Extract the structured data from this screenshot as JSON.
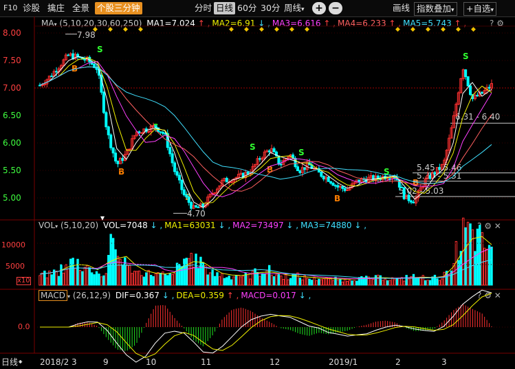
{
  "toolbar": {
    "f10": "F10",
    "diagnose": "诊股",
    "capture": "擒庄",
    "panorama": "全景",
    "plugin": "个股三分钟",
    "periods": [
      "分时",
      "日线",
      "60分",
      "30分",
      "周线"
    ],
    "active_period": "日线",
    "zoom_in": "+",
    "zoom_out": "−",
    "draw": "画线",
    "index_overlay": "指数叠加",
    "add_watchlist": "+自选",
    "caret": "▾"
  },
  "main_legend": {
    "name": "MA",
    "params": "(5,10,20,30,60,250)",
    "items": [
      {
        "label": "MA1=7.024",
        "arrow": "↑",
        "color": "#ffffff"
      },
      {
        "label": "MA2=6.91",
        "arrow": "↓",
        "color": "#f0f000"
      },
      {
        "label": "MA3=6.616",
        "arrow": "↑",
        "color": "#ff40ff"
      },
      {
        "label": "MA4=6.233",
        "arrow": "↑",
        "color": "#ff6060"
      },
      {
        "label": "MA5=5.743",
        "arrow": "↑",
        "color": "#40e0ff"
      }
    ]
  },
  "vol_legend": {
    "name": "VOL",
    "params": "(5,10,20)",
    "items": [
      {
        "label": "VOL=7048",
        "arrow": "↓",
        "color": "#ffffff"
      },
      {
        "label": "MA1=63031",
        "arrow": "↓",
        "color": "#f0f000"
      },
      {
        "label": "MA2=73497",
        "arrow": "↓",
        "color": "#ff40ff"
      },
      {
        "label": "MA3=74880",
        "arrow": "↓",
        "color": "#40e0ff"
      }
    ]
  },
  "macd_legend": {
    "name": "MACD",
    "params": "(26,12,9)",
    "items": [
      {
        "label": "DIF=0.367",
        "arrow": "↓",
        "color": "#ffffff"
      },
      {
        "label": "DEA=0.359",
        "arrow": "↑",
        "color": "#f0f000"
      },
      {
        "label": "MACD=0.017",
        "arrow": "↓",
        "color": "#ff40ff"
      }
    ]
  },
  "price_axis": [
    "8.00",
    "7.50",
    "7.00",
    "6.50",
    "6.00",
    "5.50",
    "5.00"
  ],
  "volume_axis": [
    "10000",
    "5000",
    "x10"
  ],
  "macd_axis": [
    "0.0"
  ],
  "date_axis": {
    "period_label": "日线",
    "labels": [
      "2018/2",
      "3",
      "9",
      "10",
      "11",
      "12",
      "2019/1",
      "2",
      "3"
    ]
  },
  "annotations": {
    "high": "7.98",
    "low": "4.70",
    "ranges": [
      "6.31 - 6.40",
      "5.45 - 5.46",
      "5.30 - 5.31",
      "5.02 - 5.03"
    ],
    "buy": "B",
    "sell": "S"
  },
  "colors": {
    "up": "#ff3030",
    "down": "#00ffff",
    "grid": "#7a0000",
    "axis_text": "#ff4040",
    "buy_mark": "#ff8000",
    "sell_mark": "#30ff30",
    "highlight": "#e89020"
  },
  "icons": [
    "gear-icon",
    "help-icon",
    "close-icon",
    "restore-icon",
    "down-arrow-icon",
    "up-arrow-icon"
  ],
  "chart_data": [
    {
      "type": "candlestick",
      "title": "MA",
      "ylim": [
        4.6,
        8.05
      ],
      "series": [
        {
          "name": "MA1",
          "last": 7.024
        },
        {
          "name": "MA2",
          "last": 6.91
        },
        {
          "name": "MA3",
          "last": 6.616
        },
        {
          "name": "MA4",
          "last": 6.233
        },
        {
          "name": "MA5",
          "last": 5.743
        }
      ],
      "close_path": [
        7.05,
        7.2,
        7.4,
        7.6,
        7.55,
        7.5,
        7.35,
        6.2,
        5.6,
        5.8,
        6.2,
        6.25,
        6.3,
        6.15,
        5.5,
        5.05,
        4.8,
        4.85,
        5.1,
        5.3,
        5.35,
        5.4,
        5.5,
        5.75,
        5.9,
        5.6,
        5.8,
        5.5,
        5.6,
        5.45,
        5.35,
        5.2,
        5.15,
        5.3,
        5.35,
        5.35,
        5.4,
        5.4,
        5.0,
        4.95,
        5.3,
        5.45,
        5.6,
        6.4,
        7.4,
        6.8,
        6.9,
        7.05
      ]
    },
    {
      "type": "bar",
      "title": "VOL",
      "ylim": [
        0,
        14000
      ],
      "values": [
        2500,
        3000,
        4000,
        5500,
        4500,
        3500,
        2500,
        9000,
        6500,
        4000,
        3000,
        2800,
        2500,
        2200,
        4000,
        6500,
        5500,
        3500,
        2500,
        2000,
        2400,
        2200,
        3000,
        3500,
        2500,
        2000,
        2200,
        1800,
        1500,
        1600,
        1400,
        1200,
        1500,
        1600,
        1700,
        1800,
        1500,
        1400,
        2000,
        1800,
        1600,
        1800,
        2500,
        8000,
        12500,
        11000,
        9500,
        7048
      ]
    },
    {
      "type": "bar",
      "title": "MACD",
      "series": [
        {
          "name": "DIF",
          "last": 0.367
        },
        {
          "name": "DEA",
          "last": 0.359
        },
        {
          "name": "MACD",
          "last": 0.017
        }
      ]
    }
  ]
}
